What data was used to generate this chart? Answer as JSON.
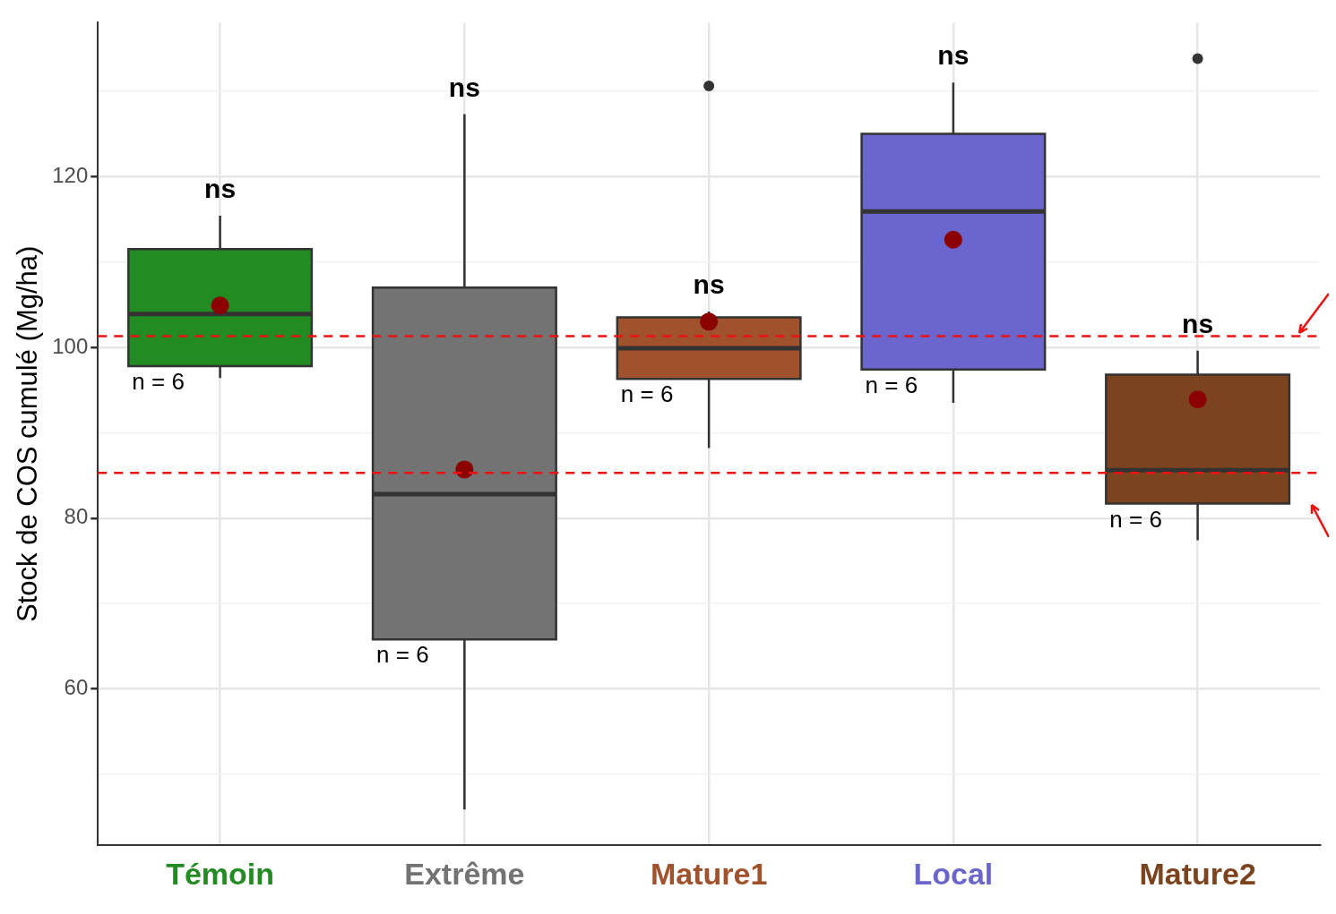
{
  "chart_data": {
    "type": "box",
    "ylabel": "Stock de COS cumulé (Mg/ha)",
    "categories": [
      "Témoin",
      "Extrême",
      "Mature1",
      "Local",
      "Mature2"
    ],
    "colors": [
      "#228b22",
      "#737373",
      "#a0522d",
      "#6a66cd",
      "#7b431e"
    ],
    "boxes": [
      {
        "low": 96.4,
        "q1": 97.8,
        "median": 103.9,
        "q3": 111.5,
        "high": 115.4,
        "mean": 104.9
      },
      {
        "low": 45.9,
        "q1": 65.8,
        "median": 82.8,
        "q3": 107.0,
        "high": 127.3,
        "mean": 85.7
      },
      {
        "low": 88.2,
        "q1": 96.3,
        "median": 99.9,
        "q3": 103.5,
        "high": 104.2,
        "mean": 103.0,
        "outliers": [
          130.6
        ]
      },
      {
        "low": 93.5,
        "q1": 97.4,
        "median": 115.9,
        "q3": 125.0,
        "high": 131.0,
        "mean": 112.6
      },
      {
        "low": 77.4,
        "q1": 81.7,
        "median": 85.6,
        "q3": 96.8,
        "high": 99.6,
        "mean": 93.9,
        "outliers": [
          133.8
        ]
      }
    ],
    "ylim": [
      41.7,
      138
    ],
    "yticks": [
      {
        "value": 50,
        "label": null
      },
      60,
      {
        "value": 70,
        "label": null
      },
      80,
      {
        "value": 90,
        "label": null
      },
      100,
      {
        "value": 110,
        "label": null
      },
      120,
      {
        "value": 130,
        "label": null
      }
    ],
    "grid": true,
    "ref_lines": [
      {
        "axis": "y",
        "value": 101.3,
        "color": "#ee1111",
        "line_style": "dashed"
      },
      {
        "axis": "y",
        "value": 85.3,
        "color": "#ee1111",
        "line_style": "dashed"
      }
    ],
    "annotations": [
      "ns",
      "ns",
      "ns",
      "ns",
      "ns",
      "n = 6",
      "n = 6",
      "n = 6",
      "n = 6",
      "n = 6"
    ]
  }
}
